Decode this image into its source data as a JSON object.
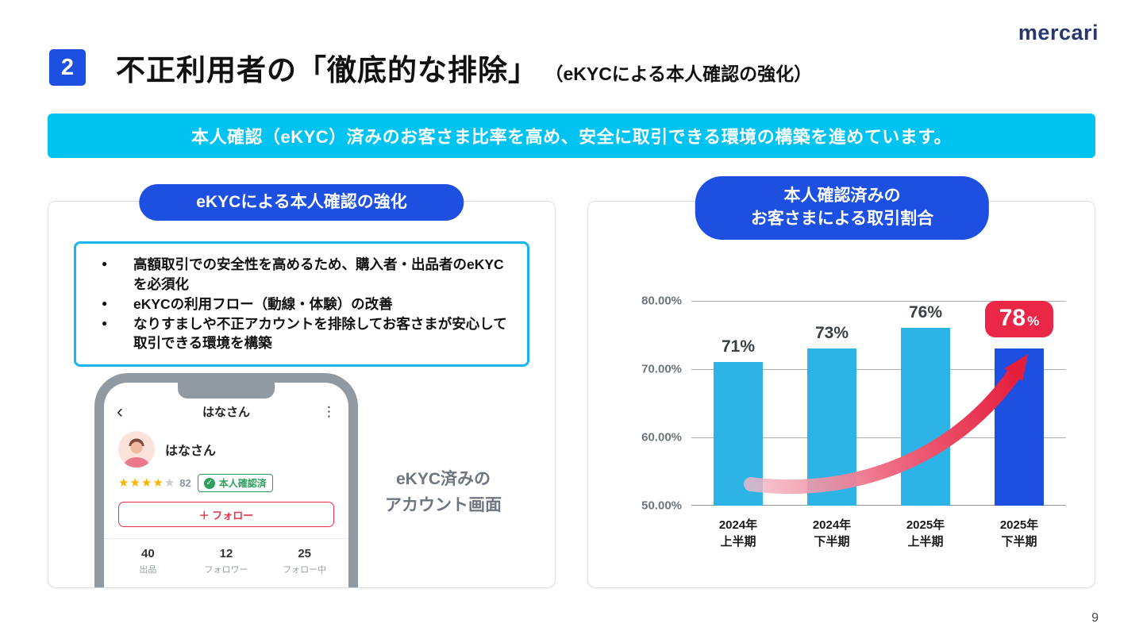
{
  "page": {
    "logo": "mercari",
    "page_number": "9",
    "section_number": "2",
    "title_main": "不正利用者の「徹底的な排除」",
    "title_sub": "（eKYCによる本人確認の強化）",
    "banner": "本人確認（eKYC）済みのお客さま比率を高め、安全に取引できる環境の構築を進めています。"
  },
  "icons": {
    "star": "★",
    "check": "✓",
    "back_chevron": "‹",
    "kebab": "⋮"
  },
  "left_panel": {
    "header": "eKYCによる本人確認の強化",
    "bullets": [
      "高額取引での安全性を高めるため、購入者・出品者のeKYCを必須化",
      "eKYCの利用フロー（動線・体験）の改善",
      "なりすましや不正アカウントを排除してお客さまが安心して取引できる環境を構築"
    ],
    "caption_line1": "eKYC済みの",
    "caption_line2": "アカウント画面",
    "phone": {
      "nav_title": "はなさん",
      "profile_name": "はなさん",
      "stars_filled": 4,
      "stars_total": 5,
      "rating_count": "82",
      "verified_badge": "本人確認済",
      "follow_button": "＋ フォロー",
      "stats": [
        {
          "value": "40",
          "label": "出品"
        },
        {
          "value": "12",
          "label": "フォロワー"
        },
        {
          "value": "25",
          "label": "フォロー中"
        }
      ]
    }
  },
  "right_panel": {
    "header_line1": "本人確認済みの",
    "header_line2": "お客さまによる取引割合"
  },
  "chart_data": {
    "type": "bar",
    "title": "本人確認済みのお客さまによる取引割合",
    "categories": [
      "2024年\n上半期",
      "2024年\n下半期",
      "2025年\n上半期",
      "2025年\n下半期"
    ],
    "values": [
      71,
      73,
      76,
      78
    ],
    "value_labels": [
      "71%",
      "73%",
      "76%",
      "78%"
    ],
    "ylabel_ticks": [
      "80.00%",
      "70.00%",
      "60.00%",
      "50.00%"
    ],
    "ylim": [
      50,
      80
    ],
    "grid": true,
    "legend": "none",
    "bar_colors": [
      "#2eb3e6",
      "#2eb3e6",
      "#2eb3e6",
      "#1d4fe1"
    ],
    "highlight_index": 3,
    "highlight_color": "#ea2746"
  }
}
